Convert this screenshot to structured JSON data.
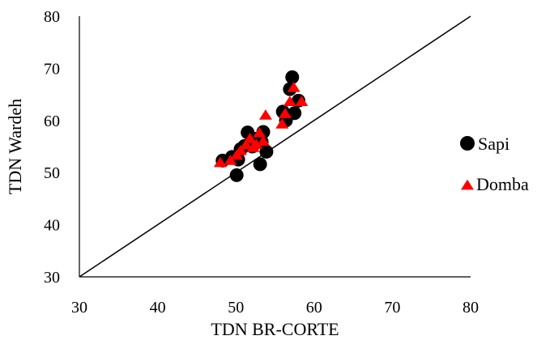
{
  "chart_data": {
    "type": "scatter",
    "xlabel": "TDN BR-CORTE",
    "ylabel": "TDN Wardeh",
    "xlim": [
      30,
      80
    ],
    "ylim": [
      30,
      80
    ],
    "xticks": [
      "30",
      "40",
      "50",
      "60",
      "70",
      "80"
    ],
    "yticks": [
      "30",
      "40",
      "50",
      "60",
      "70",
      "80"
    ],
    "grid": false,
    "reference_line": {
      "from": [
        30,
        30
      ],
      "to": [
        80,
        80
      ]
    },
    "legend_position": "right",
    "series": [
      {
        "name": "Sapi",
        "marker": "circle",
        "color": "#000000",
        "x": [
          48.3,
          49.5,
          50.1,
          50.3,
          50.6,
          51.1,
          51.5,
          52.1,
          52.6,
          53.1,
          53.3,
          53.5,
          53.9,
          56.0,
          56.4,
          56.9,
          57.2,
          57.5,
          58.0
        ],
        "y": [
          52.3,
          53.0,
          49.5,
          52.5,
          54.5,
          55.1,
          57.7,
          55.0,
          56.5,
          51.6,
          55.9,
          57.8,
          54.0,
          61.7,
          60.0,
          66.0,
          68.3,
          61.4,
          63.8
        ]
      },
      {
        "name": "Domba",
        "marker": "triangle",
        "color": "#ff0000",
        "x": [
          48.0,
          49.3,
          50.1,
          50.6,
          51.3,
          51.8,
          52.2,
          52.6,
          53.0,
          53.5,
          53.8,
          55.9,
          56.3,
          56.9,
          57.4,
          58.4
        ],
        "y": [
          51.9,
          52.3,
          53.3,
          54.2,
          55.3,
          56.5,
          54.8,
          55.4,
          57.6,
          56.0,
          61.0,
          59.3,
          61.3,
          63.6,
          66.3,
          63.6
        ]
      }
    ]
  }
}
